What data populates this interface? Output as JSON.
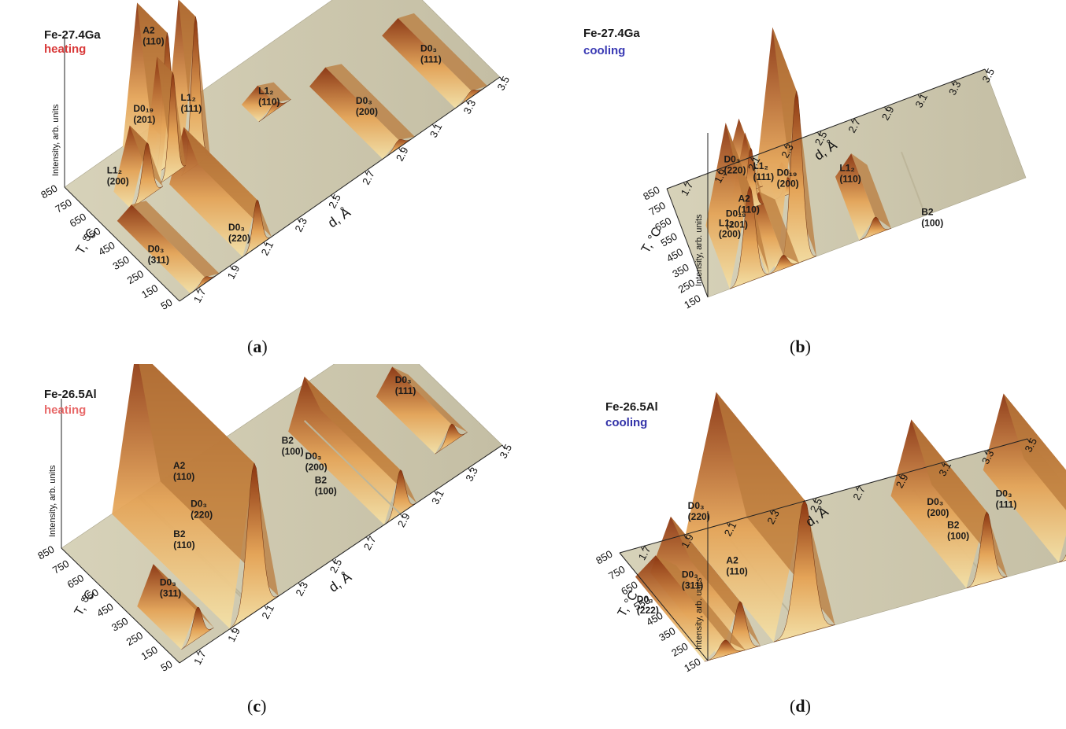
{
  "chart_data": [
    {
      "type": "surface3d",
      "panel_label": "a",
      "title": "Fe-27.4Ga",
      "subtitle": "heating",
      "subtitle_color": "#d93a3a",
      "xlabel": "d, Å",
      "ylabel": "T, °C",
      "zlabel": "Intensity, arb. units",
      "x_ticks": [
        "1.7",
        "1.9",
        "2.1",
        "2.3",
        "2.5",
        "2.7",
        "2.9",
        "3.1",
        "3.3",
        "3.5"
      ],
      "y_ticks": [
        "50",
        "150",
        "250",
        "350",
        "450",
        "550",
        "650",
        "750",
        "850"
      ],
      "xlim": [
        1.6,
        3.5
      ],
      "ylim": [
        50,
        850
      ],
      "peaks": [
        {
          "phase": "A2",
          "hkl": "(110)",
          "d": 2.03,
          "t_min": 640,
          "t_max": 850,
          "height": 0.85,
          "width": 0.018
        },
        {
          "phase": "D0₁₉",
          "hkl": "(201)",
          "d": 2.02,
          "t_min": 590,
          "t_max": 700,
          "height": 0.65,
          "width": 0.016
        },
        {
          "phase": "L1₂",
          "hkl": "(200)",
          "d": 1.85,
          "t_min": 570,
          "t_max": 690,
          "height": 0.35,
          "width": 0.02
        },
        {
          "phase": "L1₂",
          "hkl": "(111)",
          "d": 2.13,
          "t_min": 560,
          "t_max": 680,
          "height": 0.95,
          "width": 0.018
        },
        {
          "phase": "D0₃",
          "hkl": "(220)",
          "d": 2.06,
          "t_min": 50,
          "t_max": 560,
          "height": 0.3,
          "width": 0.018
        },
        {
          "phase": "L1₂",
          "hkl": "(110)",
          "d": 2.6,
          "t_min": 560,
          "t_max": 680,
          "height": 0.05,
          "width": 0.02
        },
        {
          "phase": "D0₃",
          "hkl": "(200)",
          "d": 2.9,
          "t_min": 50,
          "t_max": 560,
          "height": 0.05,
          "width": 0.02
        },
        {
          "phase": "D0₃",
          "hkl": "(111)",
          "d": 3.33,
          "t_min": 50,
          "t_max": 560,
          "height": 0.04,
          "width": 0.02
        },
        {
          "phase": "D0₃",
          "hkl": "(311)",
          "d": 1.75,
          "t_min": 50,
          "t_max": 560,
          "height": 0.04,
          "width": 0.018
        }
      ]
    },
    {
      "type": "surface3d",
      "panel_label": "b",
      "title": "Fe-27.4Ga",
      "subtitle": "cooling",
      "subtitle_color": "#3a3ab4",
      "xlabel": "d, Å",
      "ylabel": "T, °C",
      "zlabel": "Intensity, arb. units",
      "x_ticks": [
        "1.7",
        "1.9",
        "2.1",
        "2.3",
        "2.5",
        "2.7",
        "2.9",
        "3.1",
        "3.3",
        "3.5"
      ],
      "y_ticks": [
        "150",
        "250",
        "350",
        "450",
        "550",
        "650",
        "750",
        "850"
      ],
      "xlim": [
        1.6,
        3.5
      ],
      "ylim": [
        150,
        850
      ],
      "peaks": [
        {
          "phase": "L1₂",
          "hkl": "(111)",
          "d": 2.13,
          "t_min": 150,
          "t_max": 560,
          "height": 1.0,
          "width": 0.025
        },
        {
          "phase": "L1₂",
          "hkl": "(200)",
          "d": 1.85,
          "t_min": 150,
          "t_max": 560,
          "height": 0.55,
          "width": 0.025
        },
        {
          "phase": "D0₃",
          "hkl": "(220)",
          "d": 2.05,
          "t_min": 150,
          "t_max": 560,
          "height": 0.08,
          "width": 0.02
        },
        {
          "phase": "D0₁₉",
          "hkl": "(201)",
          "d": 2.0,
          "t_min": 560,
          "t_max": 660,
          "height": 0.35,
          "width": 0.016
        },
        {
          "phase": "A2",
          "hkl": "(110)",
          "d": 2.03,
          "t_min": 660,
          "t_max": 850,
          "height": 0.25,
          "width": 0.016
        },
        {
          "phase": "D0₁₉",
          "hkl": "(200)",
          "d": 2.22,
          "t_min": 560,
          "t_max": 660,
          "height": 0.1,
          "width": 0.015
        },
        {
          "phase": "L1₂",
          "hkl": "(110)",
          "d": 2.6,
          "t_min": 150,
          "t_max": 560,
          "height": 0.1,
          "width": 0.02
        },
        {
          "phase": "B2",
          "hkl": "(100)",
          "d": 2.9,
          "t_min": 150,
          "t_max": 560,
          "height": 0.0,
          "width": 0.02
        }
      ]
    },
    {
      "type": "surface3d",
      "panel_label": "c",
      "title": "Fe-26.5Al",
      "subtitle": "heating",
      "subtitle_color": "#e86a6a",
      "xlabel": "d, Å",
      "ylabel": "T, °C",
      "zlabel": "Intensity, arb. units",
      "x_ticks": [
        "1.7",
        "1.9",
        "2.1",
        "2.3",
        "2.5",
        "2.7",
        "2.9",
        "3.1",
        "3.3",
        "3.5"
      ],
      "y_ticks": [
        "50",
        "150",
        "250",
        "350",
        "450",
        "550",
        "650",
        "750",
        "850"
      ],
      "xlim": [
        1.6,
        3.5
      ],
      "ylim": [
        50,
        850
      ],
      "peaks": [
        {
          "phase": "A2",
          "hkl": "(110)",
          "d": 2.04,
          "t_min": 50,
          "t_max": 850,
          "height": 0.95,
          "width": 0.03
        },
        {
          "phase": "D0₃",
          "hkl": "(220)",
          "d": 2.05,
          "t_min": 50,
          "t_max": 850,
          "height": 0.0,
          "width": 0.02
        },
        {
          "phase": "B2",
          "hkl": "(110)",
          "d": 2.06,
          "t_min": 50,
          "t_max": 850,
          "height": 0.0,
          "width": 0.02
        },
        {
          "phase": "D0₃",
          "hkl": "(311)",
          "d": 1.75,
          "t_min": 100,
          "t_max": 400,
          "height": 0.2,
          "width": 0.02
        },
        {
          "phase": "B2",
          "hkl": "(100)",
          "d": 2.9,
          "t_min": 50,
          "t_max": 700,
          "height": 0.28,
          "width": 0.02
        },
        {
          "phase": "D0₃",
          "hkl": "(200)",
          "d": 2.9,
          "t_min": 50,
          "t_max": 700,
          "height": 0.0,
          "width": 0.02
        },
        {
          "phase": "B2",
          "hkl": "(100)",
          "d": 2.91,
          "t_min": 50,
          "t_max": 700,
          "height": 0.0,
          "width": 0.02
        },
        {
          "phase": "D0₃",
          "hkl": "(111)",
          "d": 3.33,
          "t_min": 200,
          "t_max": 600,
          "height": 0.12,
          "width": 0.02
        }
      ]
    },
    {
      "type": "surface3d",
      "panel_label": "d",
      "title": "Fe-26.5Al",
      "subtitle": "cooling",
      "subtitle_color": "#3232a8",
      "xlabel": "d, Å",
      "ylabel": "T, °C",
      "zlabel": "Intensity, arb. units",
      "x_ticks": [
        "1.7",
        "1.9",
        "2.1",
        "2.3",
        "2.5",
        "2.7",
        "2.9",
        "3.1",
        "3.3",
        "3.5"
      ],
      "y_ticks": [
        "150",
        "250",
        "350",
        "450",
        "550",
        "650",
        "750",
        "850"
      ],
      "xlim": [
        1.6,
        3.5
      ],
      "ylim": [
        150,
        850
      ],
      "peaks": [
        {
          "phase": "D0₃",
          "hkl": "(220)",
          "d": 2.05,
          "t_min": 150,
          "t_max": 850,
          "height": 0.85,
          "width": 0.03
        },
        {
          "phase": "A2",
          "hkl": "(110)",
          "d": 2.06,
          "t_min": 150,
          "t_max": 850,
          "height": 0.0,
          "width": 0.02
        },
        {
          "phase": "D0₃",
          "hkl": "(311)",
          "d": 1.75,
          "t_min": 150,
          "t_max": 700,
          "height": 0.32,
          "width": 0.02
        },
        {
          "phase": "D0₃",
          "hkl": "(222)",
          "d": 1.68,
          "t_min": 150,
          "t_max": 700,
          "height": 0.1,
          "width": 0.02
        },
        {
          "phase": "D0₃",
          "hkl": "(200)",
          "d": 2.9,
          "t_min": 150,
          "t_max": 750,
          "height": 0.45,
          "width": 0.02
        },
        {
          "phase": "B2",
          "hkl": "(100)",
          "d": 2.91,
          "t_min": 150,
          "t_max": 750,
          "height": 0.0,
          "width": 0.02
        },
        {
          "phase": "D0₃",
          "hkl": "(111)",
          "d": 3.33,
          "t_min": 150,
          "t_max": 750,
          "height": 0.45,
          "width": 0.02
        }
      ]
    }
  ]
}
